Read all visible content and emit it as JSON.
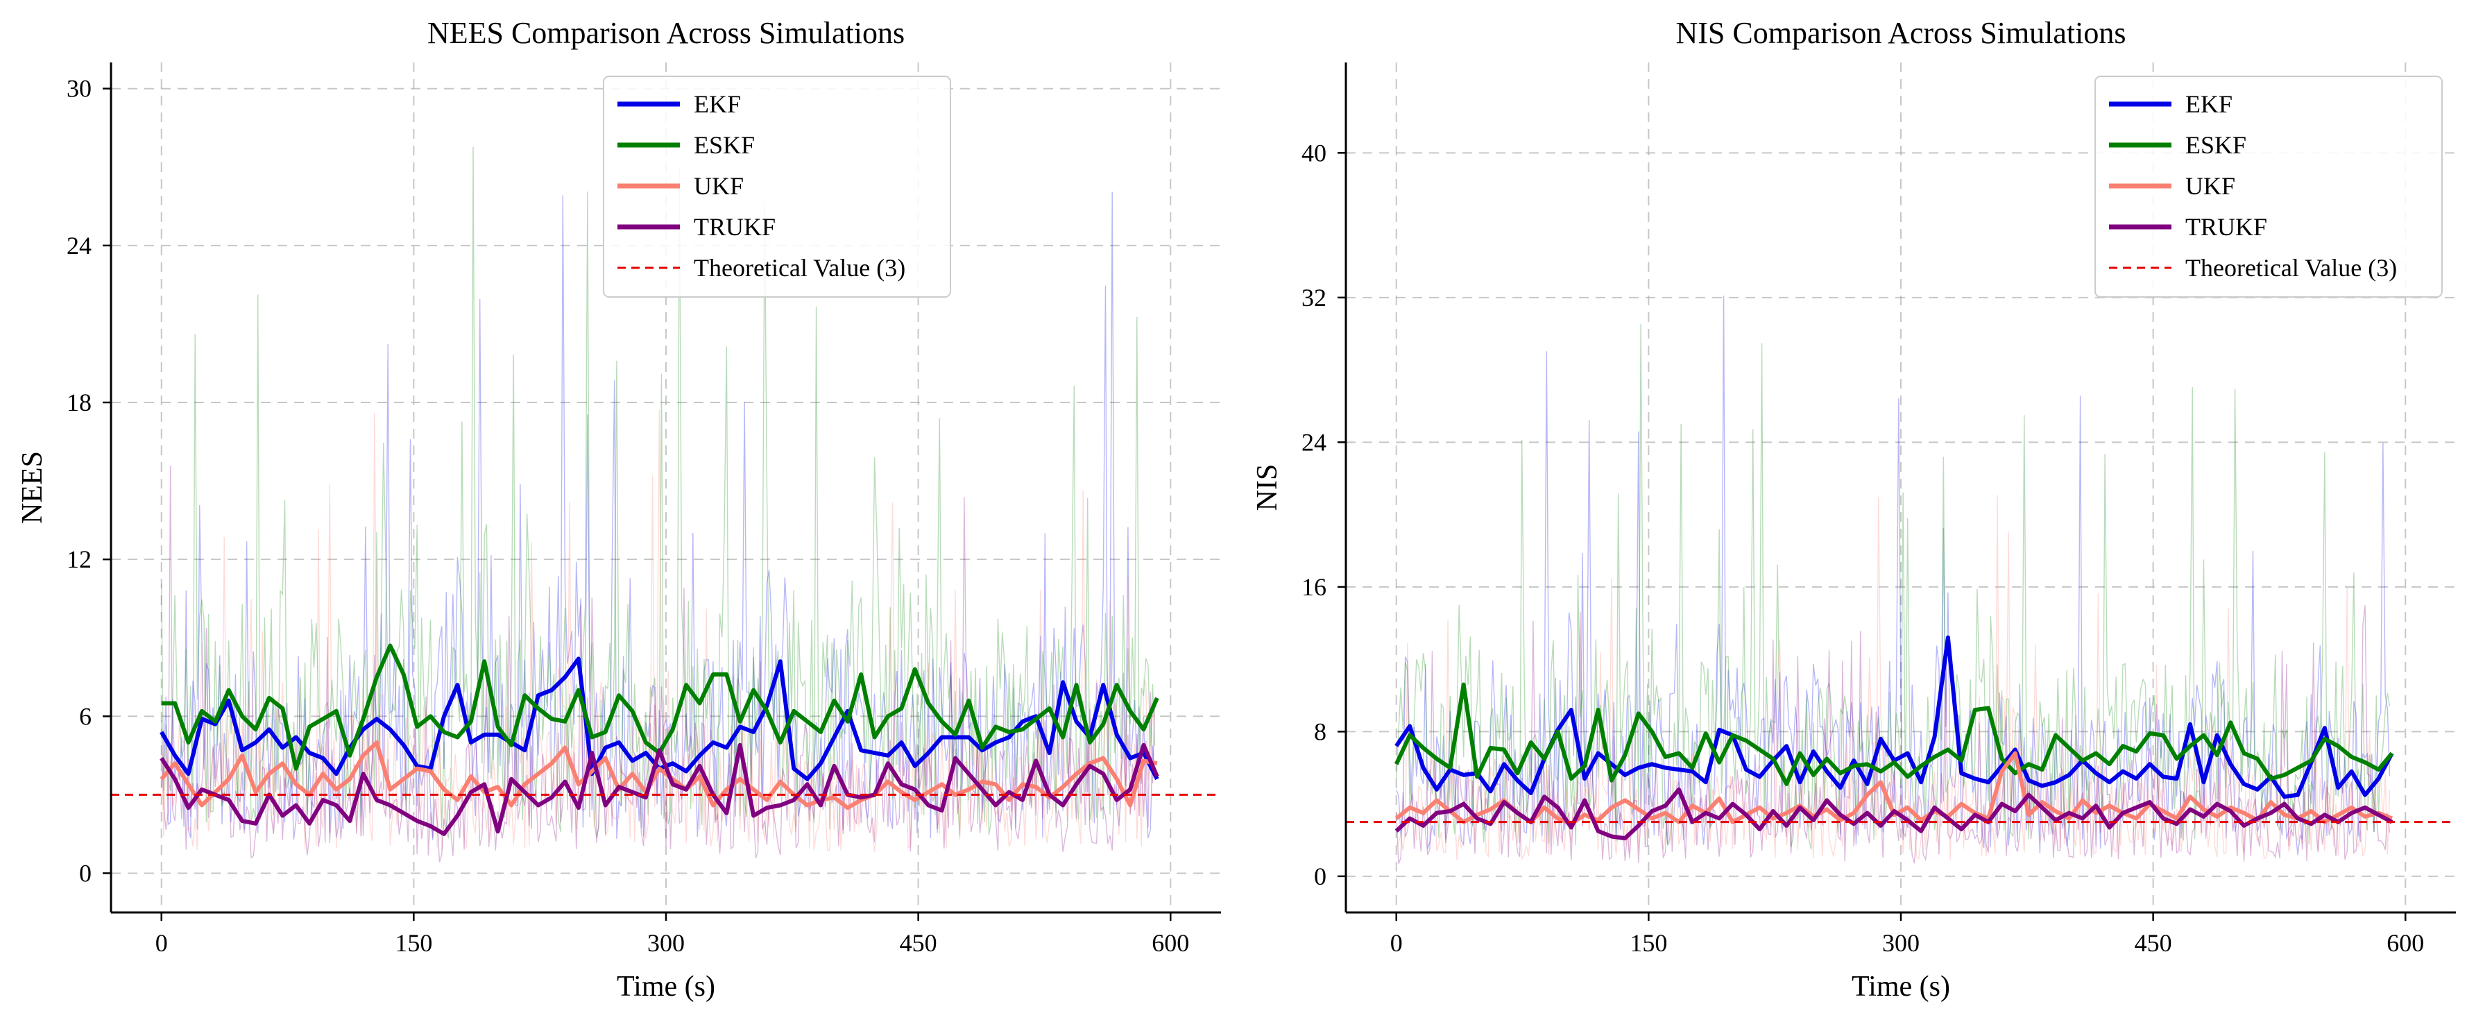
{
  "figure": {
    "palette": {
      "EKF": "#0000e6",
      "ESKF": "#008000",
      "UKF": "#fa8072",
      "TRUKF": "#800080",
      "theory": "#e60000",
      "grid": "#b0b0b0"
    }
  },
  "chart_data": [
    {
      "type": "line",
      "title": "NEES Comparison Across Simulations",
      "xlabel": "Time (s)",
      "ylabel": "NEES",
      "xlim": [
        -30,
        630
      ],
      "ylim": [
        -1.5,
        31
      ],
      "xticks": [
        0,
        150,
        300,
        450,
        600
      ],
      "yticks": [
        0,
        6,
        12,
        18,
        24,
        30
      ],
      "grid": true,
      "legend_position": "top-center",
      "x": [
        0,
        8,
        16,
        24,
        32,
        40,
        48,
        56,
        64,
        72,
        80,
        88,
        96,
        104,
        112,
        120,
        128,
        136,
        144,
        152,
        160,
        168,
        176,
        184,
        192,
        200,
        208,
        216,
        224,
        232,
        240,
        248,
        256,
        264,
        272,
        280,
        288,
        296,
        304,
        312,
        320,
        328,
        336,
        344,
        352,
        360,
        368,
        376,
        384,
        392,
        400,
        408,
        416,
        424,
        432,
        440,
        448,
        456,
        464,
        472,
        480,
        488,
        496,
        504,
        512,
        520,
        528,
        536,
        544,
        552,
        560,
        568,
        576,
        584,
        592
      ],
      "series": [
        {
          "name": "EKF",
          "color_key": "EKF",
          "values": [
            5.4,
            4.5,
            3.8,
            5.9,
            5.7,
            6.6,
            4.7,
            5.0,
            5.5,
            4.8,
            5.2,
            4.6,
            4.4,
            3.8,
            4.8,
            5.5,
            5.9,
            5.5,
            4.9,
            4.1,
            4.0,
            6.0,
            7.2,
            5.0,
            5.3,
            5.3,
            5.0,
            4.7,
            6.8,
            7.0,
            7.5,
            8.2,
            3.8,
            4.8,
            5.0,
            4.3,
            4.6,
            4.0,
            4.2,
            3.9,
            4.5,
            5.0,
            4.8,
            5.6,
            5.4,
            6.4,
            8.1,
            4.0,
            3.6,
            4.2,
            5.2,
            6.2,
            4.7,
            4.6,
            4.5,
            5.0,
            4.1,
            4.6,
            5.2,
            5.2,
            5.2,
            4.7,
            5.0,
            5.2,
            5.8,
            6.0,
            4.6,
            7.3,
            5.8,
            5.2,
            7.2,
            5.3,
            4.4,
            4.6,
            3.6
          ]
        },
        {
          "name": "ESKF",
          "color_key": "ESKF",
          "values": [
            6.5,
            6.5,
            5.0,
            6.2,
            5.8,
            7.0,
            6.0,
            5.5,
            6.7,
            6.3,
            4.0,
            5.6,
            5.9,
            6.2,
            4.5,
            5.9,
            7.5,
            8.7,
            7.6,
            5.6,
            6.0,
            5.4,
            5.2,
            5.8,
            8.1,
            5.6,
            4.9,
            6.8,
            6.3,
            5.9,
            5.8,
            7.0,
            5.2,
            5.4,
            6.8,
            6.2,
            5.0,
            4.6,
            5.5,
            7.2,
            6.5,
            7.6,
            7.6,
            5.8,
            7.0,
            6.2,
            5.0,
            6.2,
            5.8,
            5.4,
            6.6,
            5.8,
            7.6,
            5.2,
            6.0,
            6.3,
            7.8,
            6.5,
            5.8,
            5.3,
            6.6,
            4.8,
            5.6,
            5.4,
            5.5,
            5.9,
            6.3,
            5.2,
            7.2,
            5.0,
            5.7,
            7.2,
            6.2,
            5.5,
            6.7
          ]
        },
        {
          "name": "UKF",
          "color_key": "UKF",
          "values": [
            3.6,
            4.2,
            3.4,
            2.6,
            3.1,
            3.6,
            4.5,
            3.1,
            3.8,
            4.2,
            3.4,
            3.0,
            3.8,
            3.2,
            3.6,
            4.5,
            5.0,
            3.2,
            3.6,
            4.0,
            3.9,
            3.2,
            2.8,
            3.7,
            3.1,
            3.3,
            2.6,
            3.4,
            3.8,
            4.2,
            4.8,
            3.4,
            3.9,
            4.4,
            3.2,
            3.8,
            3.1,
            4.0,
            3.6,
            3.2,
            3.7,
            2.6,
            3.2,
            3.6,
            3.2,
            2.8,
            3.5,
            3.0,
            2.6,
            2.8,
            2.9,
            2.5,
            2.8,
            3.0,
            3.5,
            3.1,
            2.8,
            3.1,
            3.4,
            3.0,
            3.2,
            3.5,
            3.4,
            2.8,
            3.4,
            3.3,
            2.9,
            3.3,
            3.8,
            4.2,
            4.4,
            3.6,
            2.6,
            4.3,
            4.2
          ]
        },
        {
          "name": "TRUKF",
          "color_key": "TRUKF",
          "values": [
            4.4,
            3.6,
            2.5,
            3.2,
            3.0,
            2.8,
            2.0,
            1.9,
            3.0,
            2.2,
            2.6,
            1.9,
            2.8,
            2.6,
            2.0,
            3.8,
            2.8,
            2.6,
            2.3,
            2.0,
            1.8,
            1.5,
            2.2,
            3.1,
            3.4,
            1.6,
            3.6,
            3.1,
            2.6,
            2.9,
            3.5,
            2.5,
            4.6,
            2.6,
            3.3,
            3.1,
            2.9,
            4.7,
            3.4,
            3.2,
            4.1,
            3.0,
            2.3,
            4.9,
            2.2,
            2.5,
            2.6,
            2.8,
            3.4,
            2.6,
            4.1,
            3.0,
            2.9,
            3.0,
            4.2,
            3.4,
            3.2,
            2.6,
            2.4,
            4.4,
            3.8,
            3.2,
            2.6,
            3.1,
            2.8,
            4.3,
            3.0,
            2.6,
            3.4,
            4.1,
            3.8,
            2.8,
            3.2,
            4.9,
            3.7
          ]
        }
      ],
      "theoretical_value": 3,
      "legend": [
        "EKF",
        "ESKF",
        "UKF",
        "TRUKF",
        "Theoretical Value (3)"
      ]
    },
    {
      "type": "line",
      "title": "NIS Comparison Across Simulations",
      "xlabel": "Time (s)",
      "ylabel": "NIS",
      "xlim": [
        -30,
        630
      ],
      "ylim": [
        -2,
        45
      ],
      "xticks": [
        0,
        150,
        300,
        450,
        600
      ],
      "yticks": [
        0,
        8,
        16,
        24,
        32,
        40
      ],
      "grid": true,
      "legend_position": "top-right",
      "x": [
        0,
        8,
        16,
        24,
        32,
        40,
        48,
        56,
        64,
        72,
        80,
        88,
        96,
        104,
        112,
        120,
        128,
        136,
        144,
        152,
        160,
        168,
        176,
        184,
        192,
        200,
        208,
        216,
        224,
        232,
        240,
        248,
        256,
        264,
        272,
        280,
        288,
        296,
        304,
        312,
        320,
        328,
        336,
        344,
        352,
        360,
        368,
        376,
        384,
        392,
        400,
        408,
        416,
        424,
        432,
        440,
        448,
        456,
        464,
        472,
        480,
        488,
        496,
        504,
        512,
        520,
        528,
        536,
        544,
        552,
        560,
        568,
        576,
        584,
        592
      ],
      "series": [
        {
          "name": "EKF",
          "color_key": "EKF",
          "values": [
            7.2,
            8.3,
            6.0,
            4.8,
            5.9,
            5.6,
            5.7,
            4.7,
            6.2,
            5.3,
            4.6,
            6.5,
            8.1,
            9.2,
            5.4,
            6.8,
            6.2,
            5.6,
            6.0,
            6.2,
            6.0,
            5.9,
            5.8,
            5.2,
            8.1,
            7.8,
            5.9,
            5.5,
            6.4,
            7.2,
            5.2,
            6.9,
            5.8,
            4.9,
            6.4,
            5.1,
            7.6,
            6.4,
            6.8,
            5.2,
            7.7,
            13.2,
            5.7,
            5.4,
            5.2,
            6.1,
            7.0,
            5.3,
            5.0,
            5.2,
            5.6,
            6.4,
            5.7,
            5.2,
            5.8,
            5.4,
            6.2,
            5.5,
            5.4,
            8.4,
            5.2,
            7.8,
            6.2,
            5.1,
            4.8,
            5.5,
            4.4,
            4.5,
            6.3,
            8.2,
            4.9,
            5.8,
            4.5,
            5.4,
            6.8
          ]
        },
        {
          "name": "ESKF",
          "color_key": "ESKF",
          "values": [
            6.2,
            7.8,
            7.1,
            6.5,
            6.0,
            10.6,
            5.5,
            7.1,
            7.0,
            5.7,
            7.4,
            6.5,
            8.0,
            5.4,
            6.1,
            9.2,
            5.3,
            6.7,
            9.0,
            8.0,
            6.6,
            6.8,
            6.0,
            7.9,
            6.3,
            7.8,
            7.5,
            7.0,
            6.5,
            5.1,
            6.8,
            5.6,
            6.5,
            5.7,
            6.1,
            6.2,
            5.8,
            6.3,
            5.5,
            6.1,
            6.6,
            7.0,
            6.4,
            9.2,
            9.3,
            6.5,
            5.7,
            6.2,
            5.9,
            7.8,
            7.1,
            6.4,
            6.8,
            6.2,
            7.2,
            6.9,
            7.9,
            7.8,
            6.5,
            7.2,
            7.8,
            6.7,
            8.5,
            6.8,
            6.5,
            5.4,
            5.6,
            6.0,
            6.4,
            7.6,
            7.2,
            6.6,
            6.3,
            5.9,
            6.8
          ]
        },
        {
          "name": "UKF",
          "color_key": "UKF",
          "values": [
            3.2,
            3.8,
            3.5,
            4.2,
            3.6,
            3.0,
            3.4,
            3.7,
            4.2,
            3.5,
            3.0,
            3.8,
            3.2,
            2.9,
            3.4,
            3.1,
            3.8,
            4.2,
            3.7,
            3.2,
            3.5,
            3.0,
            3.9,
            3.5,
            4.3,
            3.0,
            3.4,
            3.8,
            3.2,
            3.5,
            3.9,
            3.3,
            3.7,
            3.1,
            3.5,
            4.5,
            5.2,
            3.4,
            3.8,
            3.1,
            3.6,
            3.3,
            4.0,
            3.5,
            3.2,
            5.8,
            6.8,
            3.4,
            4.1,
            3.6,
            3.2,
            4.2,
            3.5,
            3.9,
            3.5,
            3.2,
            4.0,
            3.6,
            3.2,
            4.4,
            3.7,
            3.3,
            3.8,
            3.5,
            3.1,
            4.1,
            3.4,
            3.2,
            3.6,
            3.0,
            3.4,
            3.8,
            3.3,
            3.5,
            3.2
          ]
        },
        {
          "name": "TRUKF",
          "color_key": "TRUKF",
          "values": [
            2.5,
            3.2,
            2.8,
            3.5,
            3.6,
            4.0,
            3.2,
            2.9,
            4.1,
            3.5,
            3.0,
            4.4,
            3.8,
            2.7,
            4.2,
            2.5,
            2.2,
            2.1,
            2.8,
            3.6,
            3.9,
            4.8,
            3.0,
            3.5,
            3.2,
            4.0,
            3.4,
            2.6,
            3.6,
            2.8,
            3.8,
            3.1,
            4.2,
            3.4,
            2.9,
            3.5,
            2.8,
            3.6,
            3.1,
            2.5,
            3.8,
            3.2,
            2.6,
            3.4,
            3.0,
            4.0,
            3.6,
            4.5,
            3.8,
            3.1,
            3.5,
            3.2,
            3.9,
            2.7,
            3.5,
            3.8,
            4.1,
            3.2,
            2.9,
            3.7,
            3.3,
            4.0,
            3.6,
            2.8,
            3.2,
            3.5,
            4.0,
            3.2,
            2.9,
            3.4,
            3.0,
            3.5,
            3.8,
            3.4,
            3.0
          ]
        }
      ],
      "theoretical_value": 3,
      "legend": [
        "EKF",
        "ESKF",
        "UKF",
        "TRUKF",
        "Theoretical Value (3)"
      ]
    }
  ]
}
